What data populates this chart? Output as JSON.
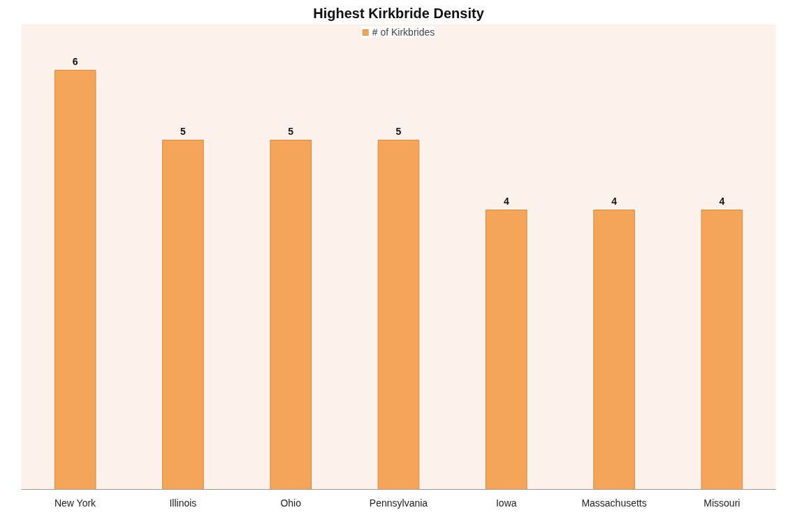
{
  "chart_data": {
    "type": "bar",
    "title": "Highest Kirkbride Density",
    "categories": [
      "New York",
      "Illinois",
      "Ohio",
      "Pennsylvania",
      "Iowa",
      "Massachusetts",
      "Missouri"
    ],
    "series": [
      {
        "name": "# of Kirkbrides",
        "color": "#f5a55a",
        "values": [
          6,
          5,
          5,
          5,
          4,
          4,
          4
        ]
      }
    ],
    "data_labels": true,
    "legend": "top",
    "grid": false
  }
}
